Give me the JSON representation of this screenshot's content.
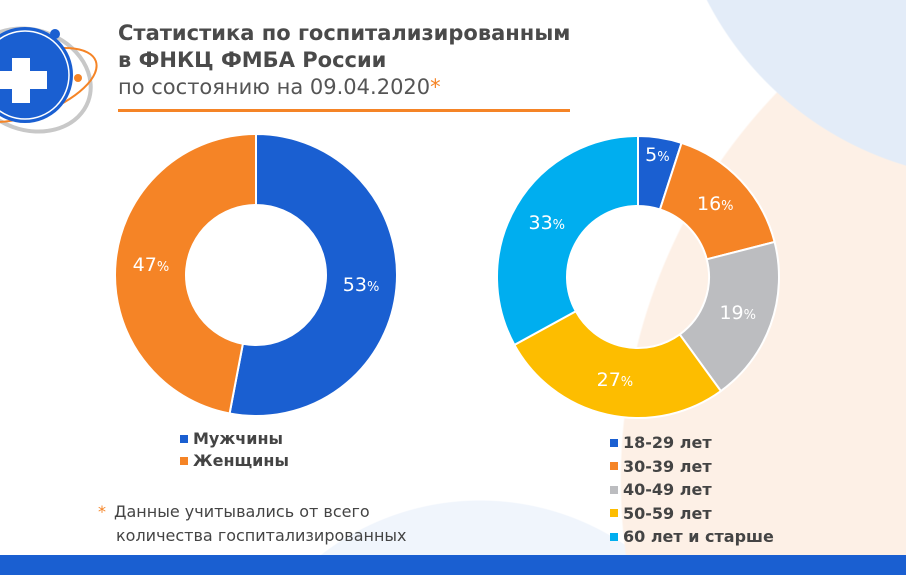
{
  "header": {
    "title_line1": "Статистика по госпитализированным",
    "title_line2": "в ФНКЦ ФМБА России",
    "title_line3": "по состоянию на 09.04.2020",
    "asterisk": "*"
  },
  "footnote": {
    "asterisk": "*",
    "line1": "Данные учитывались от всего",
    "line2": "количества госпитализированных"
  },
  "logo": {
    "icon": "medical-cross-logo"
  },
  "colors": {
    "blue": "#1a5fd1",
    "orange": "#f58426",
    "gray": "#bcbdc0",
    "yellow": "#fdbd00",
    "cyan": "#00aeef"
  },
  "chart_data": [
    {
      "type": "pie",
      "donut": true,
      "categories": [
        "Мужчины",
        "Женщины"
      ],
      "values": [
        53,
        47
      ],
      "labels": [
        "53",
        "47"
      ],
      "unit": "%",
      "colors": [
        "#1a5fd1",
        "#f58426"
      ],
      "legend": "bottom"
    },
    {
      "type": "pie",
      "donut": true,
      "categories": [
        "18-29 лет",
        "30-39 лет",
        "40-49 лет",
        "50-59 лет",
        "60 лет и старше"
      ],
      "values": [
        5,
        16,
        19,
        27,
        33
      ],
      "labels": [
        "5",
        "16",
        "19",
        "27",
        "33"
      ],
      "unit": "%",
      "colors": [
        "#1a5fd1",
        "#f58426",
        "#bcbdc0",
        "#fdbd00",
        "#00aeef"
      ],
      "legend": "bottom"
    }
  ]
}
